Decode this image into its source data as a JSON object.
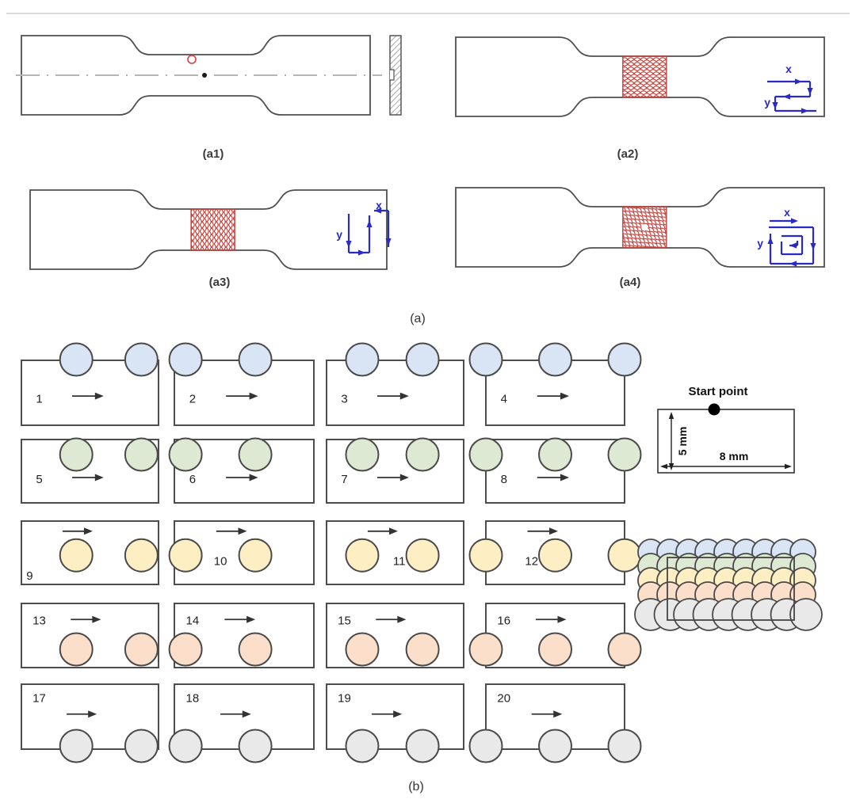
{
  "panel_a": {
    "label": "(a)",
    "subpanels": [
      {
        "label": "(a1)",
        "scan": "none"
      },
      {
        "label": "(a2)",
        "scan": "raster-along-x",
        "axis_x": "x",
        "axis_y": "y"
      },
      {
        "label": "(a3)",
        "scan": "raster-along-y",
        "axis_x": "x",
        "axis_y": "y"
      },
      {
        "label": "(a4)",
        "scan": "spiral",
        "axis_x": "x",
        "axis_y": "y"
      }
    ],
    "colors": {
      "outline": "#4f4f4f",
      "scan_hatch_red": "#c1403a",
      "path_blue": "#2a2ac6",
      "centerline_gray": "#b5b5b5"
    }
  },
  "panel_b": {
    "label": "(b)",
    "sample_numbers": [
      "1",
      "2",
      "3",
      "4",
      "5",
      "6",
      "7",
      "8",
      "9",
      "10",
      "11",
      "12",
      "13",
      "14",
      "15",
      "16",
      "17",
      "18",
      "19",
      "20"
    ],
    "rows": [
      {
        "name": "blue",
        "fill": "#d9e4f4",
        "align": "top-straddle"
      },
      {
        "name": "green",
        "fill": "#dde9d2",
        "align": "top-inside"
      },
      {
        "name": "yellow",
        "fill": "#fdeec4",
        "align": "middle"
      },
      {
        "name": "peach",
        "fill": "#fbdfca",
        "align": "bottom-inside"
      },
      {
        "name": "gray",
        "fill": "#e9e9e9",
        "align": "bottom-straddle"
      }
    ],
    "columns": [
      {
        "tracks": [
          0.4,
          0.875
        ]
      },
      {
        "tracks": [
          0.08,
          0.58
        ]
      },
      {
        "tracks": [
          0.26,
          0.7
        ]
      },
      {
        "tracks": [
          0.0,
          0.5,
          1.0
        ]
      }
    ],
    "circle_stroke": "#4a4a4a",
    "rect_stroke": "#4d4d4d",
    "arrow_color": "#333333",
    "start_point": {
      "title": "Start point",
      "height_label": "5 mm",
      "width_label": "8 mm"
    },
    "overlap_diagram": {
      "rows": 5,
      "circles_per_row": 9
    }
  }
}
